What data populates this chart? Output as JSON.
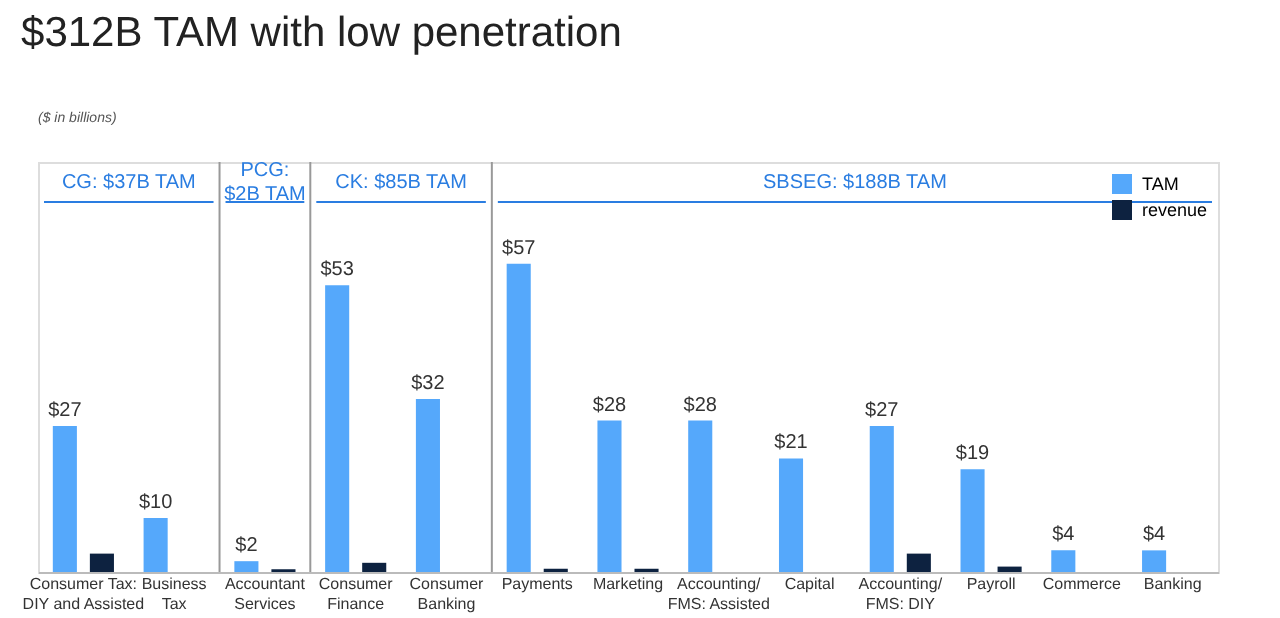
{
  "chart_data": {
    "type": "bar",
    "title": "$312B TAM with low penetration",
    "categories": [
      "Consumer Tax:\nDIY and Assisted",
      "Business\nTax",
      "Accountant\nServices",
      "Consumer\nFinance",
      "Consumer\nBanking",
      "Payments",
      "Marketing",
      "Accounting/\nFMS: Assisted",
      "Capital",
      "Accounting/\nFMS: DIY",
      "Payroll",
      "Commerce",
      "Banking"
    ],
    "series": [
      {
        "name": "TAM",
        "color": "#55a8fb",
        "values": [
          27,
          10,
          2,
          53,
          32,
          57,
          28,
          28,
          21,
          27,
          19,
          4,
          4
        ],
        "value_labels": [
          "$27",
          "$10",
          "$2",
          "$53",
          "$32",
          "$57",
          "$28",
          "$28",
          "$21",
          "$27",
          "$19",
          "$4",
          "$4"
        ]
      },
      {
        "name": "revenue",
        "color": "#0d2240",
        "values": [
          3.4,
          null,
          0.5,
          1.7,
          null,
          0.6,
          0.6,
          null,
          null,
          3.4,
          1,
          null,
          null
        ]
      }
    ],
    "annotations": [
      "($ in billions)",
      "CG: $37B TAM",
      "PCG:\n$2B TAM",
      "CK: $85B TAM",
      "SBSEG: $188B TAM"
    ],
    "legend": "top right",
    "grid": false
  }
}
